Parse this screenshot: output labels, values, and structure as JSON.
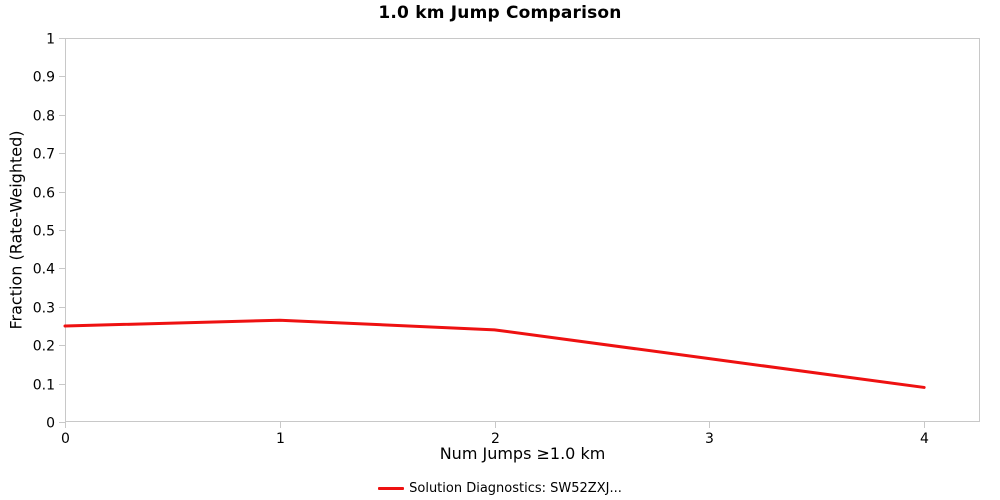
{
  "chart_data": {
    "type": "line",
    "title": "1.0 km Jump Comparison",
    "xlabel": "Num Jumps ≥1.0 km",
    "ylabel": "Fraction (Rate-Weighted)",
    "x": [
      0,
      1,
      2,
      3,
      4
    ],
    "series": [
      {
        "name": "Solution Diagnostics: SW52ZXJ...",
        "values": [
          0.25,
          0.265,
          0.24,
          0.165,
          0.09
        ],
        "color": "#ee1111"
      }
    ],
    "xlim": [
      0,
      4.26
    ],
    "ylim": [
      0,
      1
    ],
    "xticks": {
      "values": [
        0,
        1,
        2,
        3,
        4
      ],
      "labels": [
        "0",
        "1",
        "2",
        "3",
        "4"
      ]
    },
    "yticks": {
      "values": [
        0,
        0.1,
        0.2,
        0.3,
        0.4,
        0.5,
        0.6,
        0.7,
        0.8,
        0.9,
        1
      ],
      "labels": [
        "0",
        "0.1",
        "0.2",
        "0.3",
        "0.4",
        "0.5",
        "0.6",
        "0.7",
        "0.8",
        "0.9",
        "1"
      ]
    },
    "grid": false,
    "legend_position": "bottom-center",
    "colors": {
      "line": "#ee1111",
      "frame": "#c8c8c8",
      "tick": "#c8c8c8",
      "text": "#000000"
    }
  }
}
